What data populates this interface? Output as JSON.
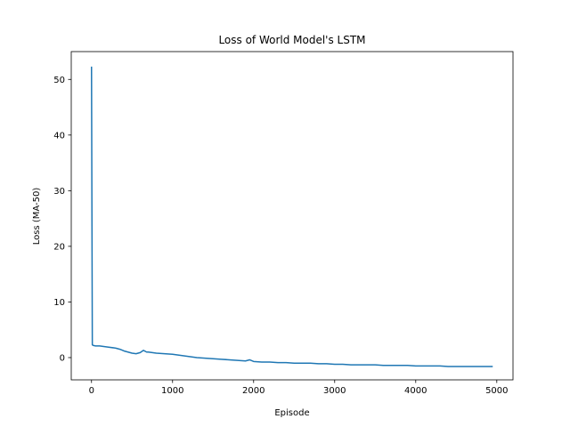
{
  "chart_data": {
    "type": "line",
    "title": "Loss of World Model's LSTM",
    "xlabel": "Episode",
    "ylabel": "Loss (MA-50)",
    "xlim": [
      -250,
      5200
    ],
    "ylim": [
      -4,
      55
    ],
    "xticks": [
      0,
      1000,
      2000,
      3000,
      4000,
      5000
    ],
    "yticks": [
      0,
      10,
      20,
      30,
      40,
      50
    ],
    "grid": false,
    "legend": "none",
    "series": [
      {
        "color": "#1f77b4",
        "x": [
          0,
          10,
          20,
          50,
          100,
          200,
          300,
          350,
          400,
          450,
          500,
          550,
          600,
          640,
          680,
          700,
          750,
          800,
          900,
          1000,
          1100,
          1200,
          1300,
          1400,
          1500,
          1600,
          1700,
          1800,
          1900,
          1950,
          2000,
          2100,
          2200,
          2300,
          2400,
          2500,
          2600,
          2700,
          2800,
          2900,
          3000,
          3100,
          3200,
          3300,
          3400,
          3500,
          3600,
          3700,
          3800,
          3900,
          4000,
          4100,
          4200,
          4300,
          4400,
          4500,
          4600,
          4700,
          4800,
          4950
        ],
        "y": [
          52.3,
          2.3,
          2.2,
          2.1,
          2.1,
          1.9,
          1.7,
          1.5,
          1.2,
          1.0,
          0.8,
          0.7,
          0.9,
          1.3,
          1.0,
          1.0,
          0.9,
          0.8,
          0.7,
          0.6,
          0.4,
          0.2,
          0.0,
          -0.1,
          -0.2,
          -0.3,
          -0.4,
          -0.5,
          -0.6,
          -0.4,
          -0.7,
          -0.8,
          -0.8,
          -0.9,
          -0.9,
          -1.0,
          -1.0,
          -1.0,
          -1.1,
          -1.1,
          -1.2,
          -1.2,
          -1.3,
          -1.3,
          -1.3,
          -1.3,
          -1.4,
          -1.4,
          -1.4,
          -1.4,
          -1.5,
          -1.5,
          -1.5,
          -1.5,
          -1.6,
          -1.6,
          -1.6,
          -1.6,
          -1.6,
          -1.6
        ]
      }
    ]
  }
}
